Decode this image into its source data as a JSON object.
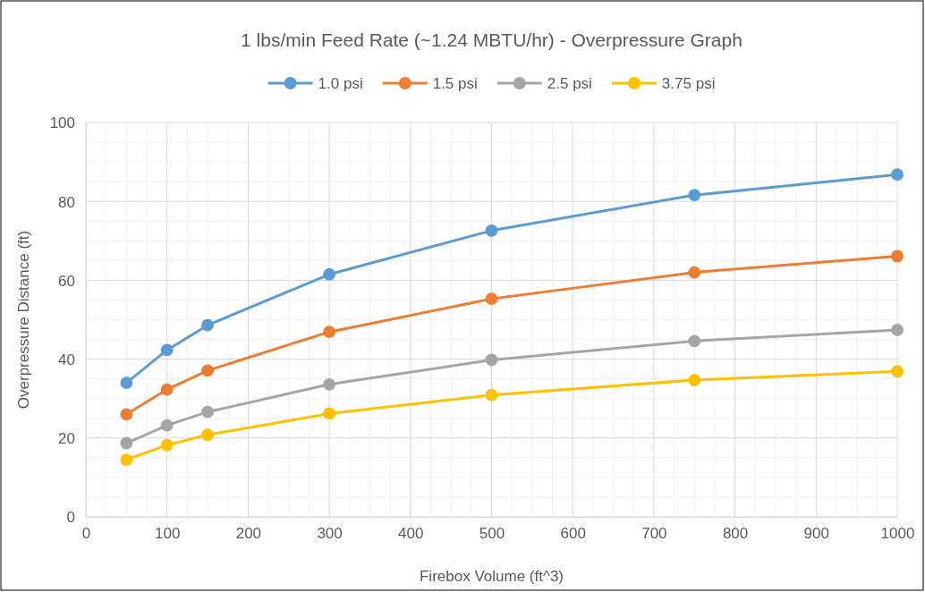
{
  "chart_data": {
    "type": "line",
    "title": "1 lbs/min Feed Rate (~1.24 MBTU/hr) - Overpressure Graph",
    "xlabel": "Firebox Volume (ft^3)",
    "ylabel": "Overpressure Distance (ft)",
    "x": [
      50,
      100,
      150,
      300,
      500,
      750,
      1000
    ],
    "series": [
      {
        "name": "1.0 psi",
        "color": "#5b9bd5",
        "values": [
          34.0,
          42.3,
          48.6,
          61.5,
          72.6,
          81.6,
          86.8
        ]
      },
      {
        "name": "1.5 psi",
        "color": "#ed7d31",
        "values": [
          26.0,
          32.3,
          37.1,
          46.9,
          55.3,
          62.0,
          66.1
        ]
      },
      {
        "name": "2.5 psi",
        "color": "#a5a5a5",
        "values": [
          18.7,
          23.2,
          26.6,
          33.6,
          39.8,
          44.6,
          47.4
        ]
      },
      {
        "name": "3.75 psi",
        "color": "#ffc000",
        "values": [
          14.5,
          18.2,
          20.8,
          26.2,
          30.9,
          34.7,
          36.9
        ]
      }
    ],
    "xlim": [
      0,
      1000
    ],
    "xticks": [
      0,
      100,
      200,
      300,
      400,
      500,
      600,
      700,
      800,
      900,
      1000
    ],
    "ylim": [
      0,
      100
    ],
    "yticks": [
      0,
      20,
      40,
      60,
      80,
      100
    ],
    "grid": true,
    "legend": "top",
    "marker": "circle",
    "line_style": "solid"
  }
}
